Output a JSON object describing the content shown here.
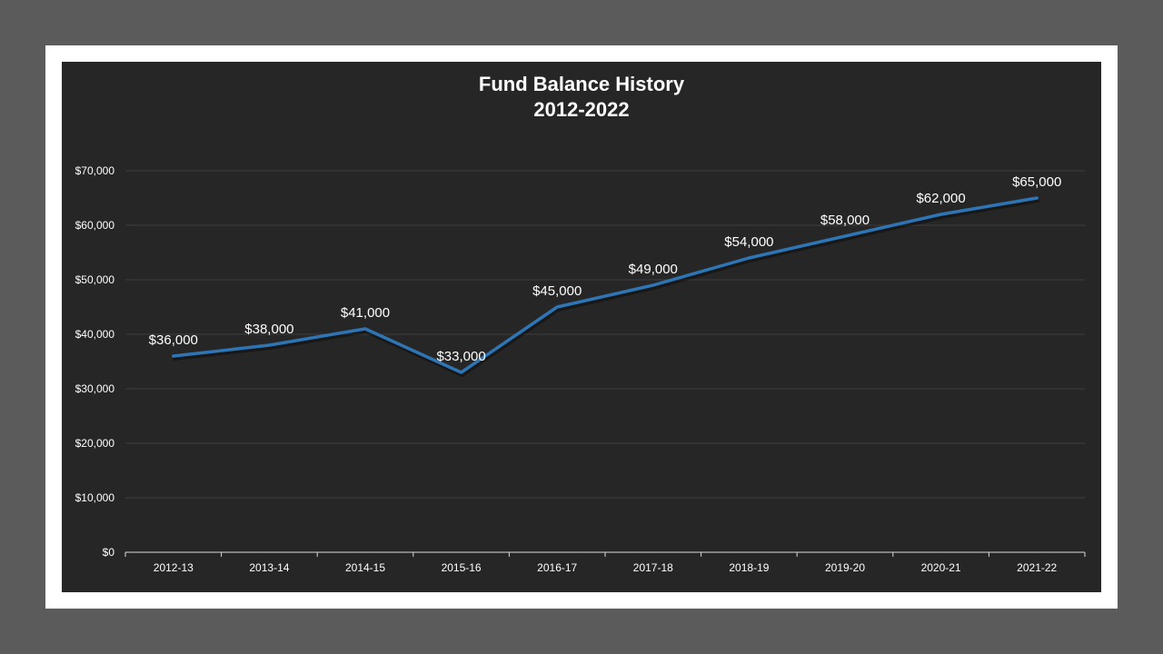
{
  "chart_data": {
    "type": "line",
    "title": "Fund Balance History",
    "subtitle": "2012-2022",
    "categories": [
      "2012-13",
      "2013-14",
      "2014-15",
      "2015-16",
      "2016-17",
      "2017-18",
      "2018-19",
      "2019-20",
      "2020-21",
      "2021-22"
    ],
    "series": [
      {
        "values": [
          36000,
          38000,
          41000,
          33000,
          45000,
          49000,
          54000,
          58000,
          62000,
          65000
        ],
        "data_labels": [
          "$36,000",
          "$38,000",
          "$41,000",
          "$33,000",
          "$45,000",
          "$49,000",
          "$54,000",
          "$58,000",
          "$62,000",
          "$65,000"
        ],
        "color": "#2e75b6"
      }
    ],
    "ylim": [
      0,
      70000
    ],
    "y_ticks": [
      0,
      10000,
      20000,
      30000,
      40000,
      50000,
      60000,
      70000
    ],
    "y_tick_labels": [
      "$0",
      "$10,000",
      "$20,000",
      "$30,000",
      "$40,000",
      "$50,000",
      "$60,000",
      "$70,000"
    ],
    "grid": true,
    "legend": "none",
    "background_color": "#262626",
    "text_color": "#ffffff",
    "grid_color": "#3e3e3e"
  }
}
